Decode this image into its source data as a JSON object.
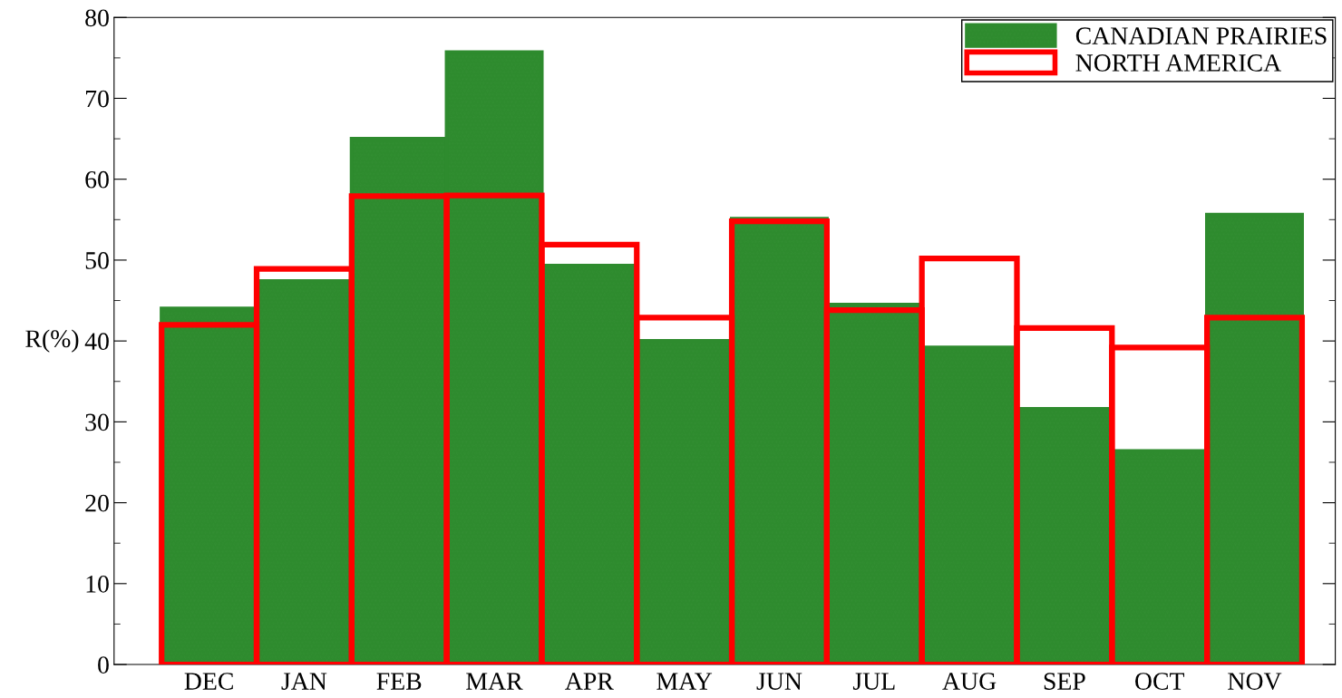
{
  "chart_data": {
    "type": "bar",
    "ylabel": "R(%)",
    "categories": [
      "DEC",
      "JAN",
      "FEB",
      "MAR",
      "APR",
      "MAY",
      "JUN",
      "JUL",
      "AUG",
      "SEP",
      "OCT",
      "NOV"
    ],
    "series": [
      {
        "name": "CANADIAN PRAIRIES",
        "color": "#2e8b2e",
        "values": [
          44,
          47.4,
          65,
          75.7,
          49.3,
          40,
          55.1,
          44.5,
          39.2,
          31.6,
          26.4,
          55.6
        ]
      },
      {
        "name": "NORTH AMERICA",
        "color": "#ff0000",
        "values": [
          42,
          48.9,
          57.9,
          58,
          51.9,
          42.9,
          54.8,
          43.8,
          50.2,
          41.6,
          39.2,
          42.9
        ]
      }
    ],
    "ylim": [
      0,
      80
    ],
    "yticks": [
      0,
      10,
      20,
      30,
      40,
      50,
      60,
      70,
      80
    ],
    "grid": false,
    "legend": "top right"
  }
}
